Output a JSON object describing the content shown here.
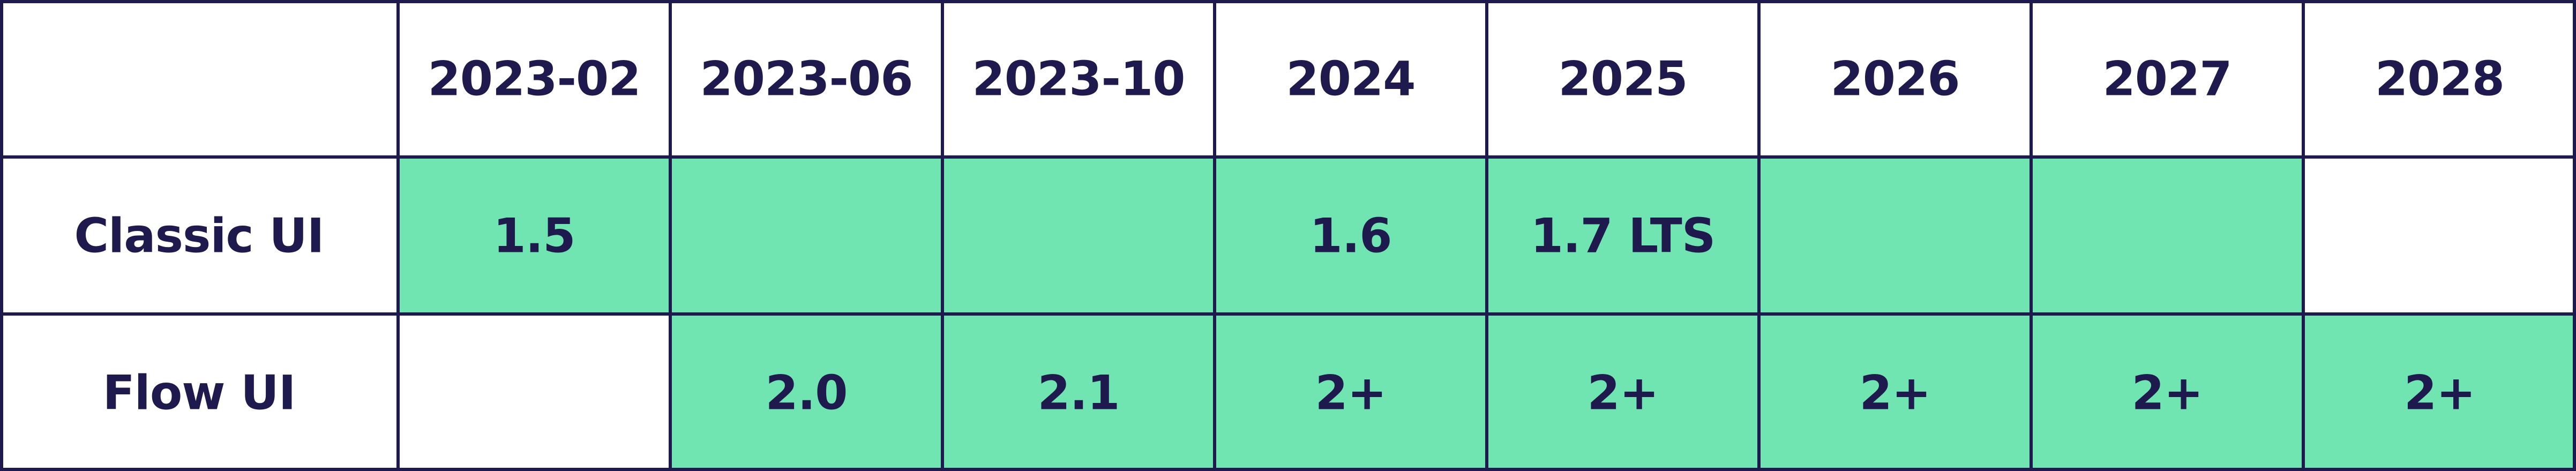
{
  "chart_data": {
    "type": "table",
    "columns": [
      "",
      "2023-02",
      "2023-06",
      "2023-10",
      "2024",
      "2025",
      "2026",
      "2027",
      "2028"
    ],
    "rows": [
      {
        "label": "Classic UI",
        "supported": [
          true,
          true,
          true,
          true,
          true,
          true,
          true,
          false
        ],
        "values": [
          "1.5",
          "",
          "",
          "1.6",
          "1.7 LTS",
          "",
          "",
          ""
        ]
      },
      {
        "label": "Flow UI",
        "supported": [
          false,
          true,
          true,
          true,
          true,
          true,
          true,
          true
        ],
        "values": [
          "",
          "2.0",
          "2.1",
          "2+",
          "2+",
          "2+",
          "2+",
          "2+"
        ]
      }
    ],
    "colors": {
      "active_fill": "#70e5b2",
      "empty_fill": "#ffffff",
      "border": "#1f1a4d",
      "text": "#1f1a4d"
    }
  }
}
